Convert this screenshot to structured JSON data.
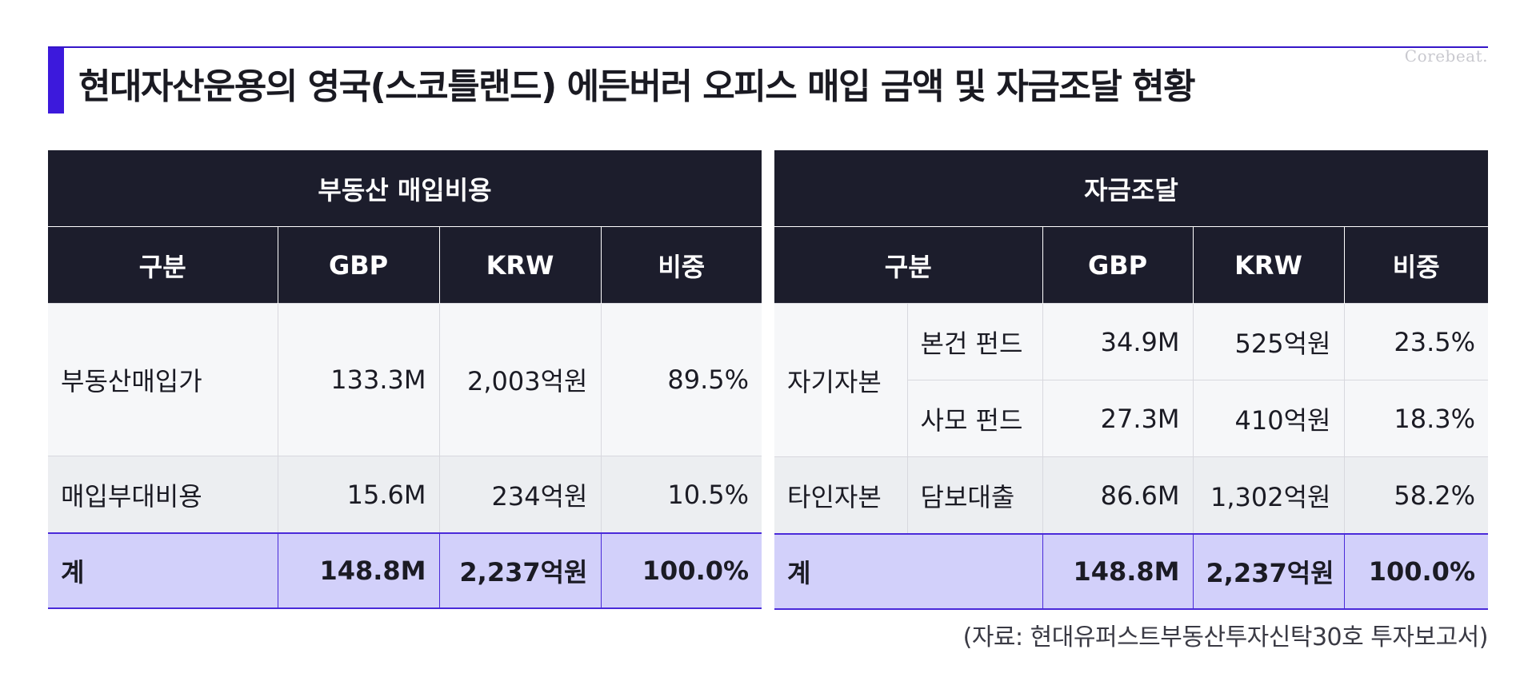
{
  "title": "현대자산운용의 영국(스코틀랜드) 에든버러 오피스 매입 금액 및 자금조달 현황",
  "brand": "Corebeat.",
  "colors": {
    "accent": "#3c19dc",
    "header_bg": "#1c1d2c",
    "total_bg": "#d2d0fa"
  },
  "left_table": {
    "group_header": "부동산 매입비용",
    "columns": [
      "구분",
      "GBP",
      "KRW",
      "비중"
    ],
    "rows": [
      {
        "label": "부동산매입가",
        "gbp": "133.3M",
        "krw": "2,003억원",
        "share": "89.5%"
      },
      {
        "label": "매입부대비용",
        "gbp": "15.6M",
        "krw": "234억원",
        "share": "10.5%"
      }
    ],
    "total": {
      "label": "계",
      "gbp": "148.8M",
      "krw": "2,237억원",
      "share": "100.0%"
    }
  },
  "right_table": {
    "group_header": "자금조달",
    "columns": [
      "구분",
      "GBP",
      "KRW",
      "비중"
    ],
    "groups": [
      {
        "label": "자기자본",
        "rows": [
          {
            "label": "본건 펀드",
            "gbp": "34.9M",
            "krw": "525억원",
            "share": "23.5%"
          },
          {
            "label": "사모 펀드",
            "gbp": "27.3M",
            "krw": "410억원",
            "share": "18.3%"
          }
        ]
      },
      {
        "label": "타인자본",
        "rows": [
          {
            "label": "담보대출",
            "gbp": "86.6M",
            "krw": "1,302억원",
            "share": "58.2%"
          }
        ]
      }
    ],
    "total": {
      "label": "계",
      "gbp": "148.8M",
      "krw": "2,237억원",
      "share": "100.0%"
    }
  },
  "source": "(자료: 현대유퍼스트부동산투자신탁30호 투자보고서)"
}
